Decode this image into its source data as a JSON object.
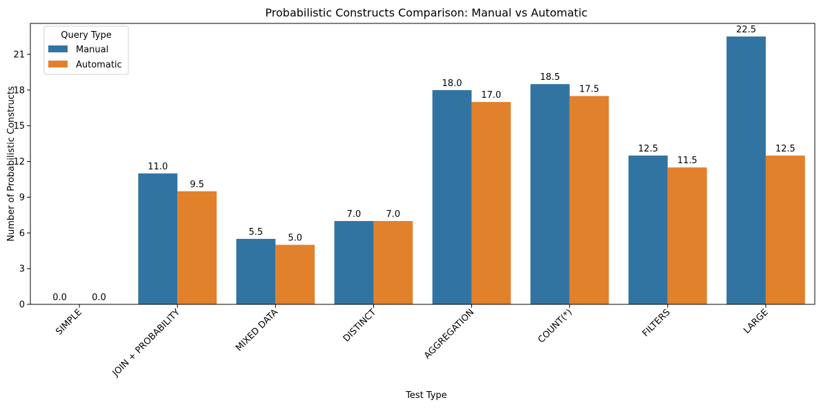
{
  "chart_data": {
    "type": "bar",
    "title": "Probabilistic Constructs Comparison: Manual vs Automatic",
    "xlabel": "Test Type",
    "ylabel": "Number of Probabilistic Constructs",
    "categories": [
      "SIMPLE",
      "JOIN + PROBABILITY",
      "MIXED DATA",
      "DISTINCT",
      "AGGREGATION",
      "COUNT(*)",
      "FILTERS",
      "LARGE"
    ],
    "series": [
      {
        "name": "Manual",
        "color": "#3274a1",
        "values": [
          0.0,
          11.0,
          5.5,
          7.0,
          18.0,
          18.5,
          12.5,
          22.5
        ]
      },
      {
        "name": "Automatic",
        "color": "#e1812c",
        "values": [
          0.0,
          9.5,
          5.0,
          7.0,
          17.0,
          17.5,
          11.5,
          12.5
        ]
      }
    ],
    "value_labels": [
      [
        "0.0",
        "11.0",
        "5.5",
        "7.0",
        "18.0",
        "18.5",
        "12.5",
        "22.5"
      ],
      [
        "0.0",
        "9.5",
        "5.0",
        "7.0",
        "17.0",
        "17.5",
        "11.5",
        "12.5"
      ]
    ],
    "ylim": [
      0,
      23.6
    ],
    "yticks": [
      0,
      3,
      6,
      9,
      12,
      15,
      18,
      21
    ],
    "ytick_labels": [
      "0",
      "3",
      "6",
      "9",
      "12",
      "15",
      "18",
      "21"
    ],
    "xtick_rotation_deg": 45,
    "grid": false,
    "legend": {
      "title": "Query Type",
      "placement": "top-left"
    }
  }
}
